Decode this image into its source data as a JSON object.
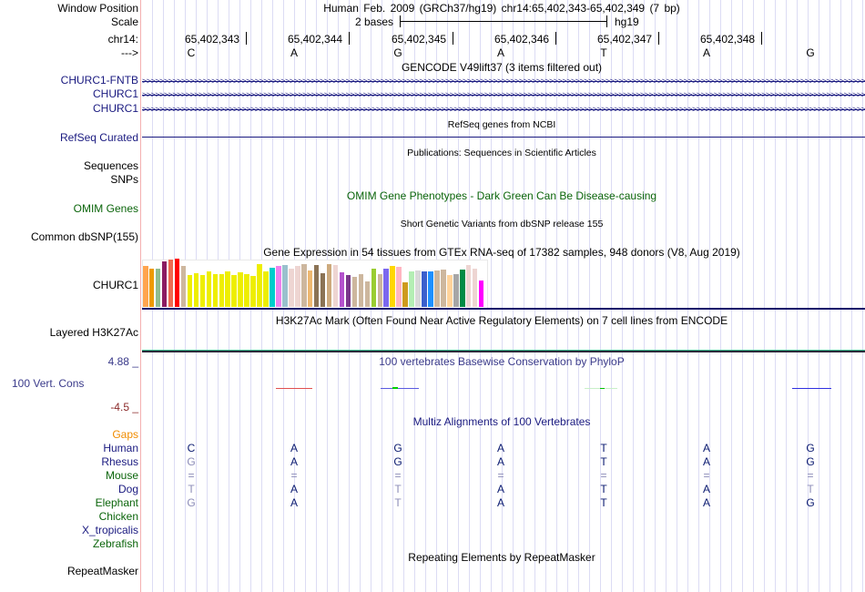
{
  "header": {
    "window_position_label": "Window Position",
    "assembly_position": "Human Feb. 2009 (GRCh37/hg19)   chr14:65,402,343-65,402,349 (7 bp)",
    "scale_label": "Scale",
    "scale_value": "2 bases",
    "scale_db": "hg19",
    "chrom_label": "chr14:",
    "strand_label": "--->",
    "coordinates": [
      "65,402,343",
      "65,402,344",
      "65,402,345",
      "65,402,346",
      "65,402,347",
      "65,402,348"
    ],
    "bases": [
      "C",
      "A",
      "G",
      "A",
      "T",
      "A",
      "G"
    ]
  },
  "tracks": {
    "gencode": {
      "title": "GENCODE V49lift37 (3 items filtered out)",
      "items": [
        "CHURC1-FNTB",
        "CHURC1",
        "CHURC1"
      ]
    },
    "refseq": {
      "title": "RefSeq genes from NCBI",
      "label": "RefSeq Curated"
    },
    "publications": {
      "title": "Publications: Sequences in Scientific Articles",
      "labels": [
        "Sequences",
        "SNPs"
      ]
    },
    "omim": {
      "title": "OMIM Gene Phenotypes - Dark Green Can Be Disease-causing",
      "label": "OMIM Genes"
    },
    "dbsnp": {
      "title": "Short Genetic Variants from dbSNP release 155",
      "label": "Common dbSNP(155)"
    },
    "gtex": {
      "title": "Gene Expression in 54 tissues from GTEx RNA-seq of 17382 samples, 948 donors (V8, Aug 2019)",
      "label": "CHURC1",
      "expression": [
        45,
        42,
        42,
        50,
        52,
        53,
        45,
        35,
        37,
        35,
        39,
        36,
        36,
        39,
        35,
        38,
        36,
        34,
        47,
        39,
        43,
        45,
        46,
        42,
        45,
        47,
        40,
        46,
        37,
        47,
        46,
        38,
        35,
        33,
        36,
        28,
        42,
        36,
        42,
        45,
        44,
        27,
        39,
        40,
        39,
        39,
        40,
        41,
        35,
        36,
        41,
        46,
        42,
        29
      ],
      "colors": [
        "#FFA54F",
        "#EE9A00",
        "#8FBC8F",
        "#8B1C62",
        "#EE6A50",
        "#FF0000",
        "#CDB79E",
        "#EEEE00",
        "#EEEE00",
        "#EEEE00",
        "#EEEE00",
        "#EEEE00",
        "#EEEE00",
        "#EEEE00",
        "#EEEE00",
        "#EEEE00",
        "#EEEE00",
        "#EEEE00",
        "#EEEE00",
        "#EEEE00",
        "#00CDCD",
        "#EE82EE",
        "#9AC0CD",
        "#EED5D2",
        "#EED5D2",
        "#CDB79E",
        "#EEB870",
        "#8B7355",
        "#8B7355",
        "#CDAA7D",
        "#EED5D2",
        "#B452CD",
        "#7A378B",
        "#CDB79E",
        "#CDB79E",
        "#CDB79E",
        "#9ACD32",
        "#CDB79E",
        "#7B68EE",
        "#FFD700",
        "#FFB6C1",
        "#CD9B1D",
        "#B4EEB4",
        "#D9D9D9",
        "#3A5FCD",
        "#1E90FF",
        "#CDB79E",
        "#CDB79E",
        "#FFD39B",
        "#A6A6A6",
        "#008B45",
        "#EED5D2",
        "#EED5D2",
        "#FF00FF"
      ]
    },
    "h3k27ac": {
      "title": "H3K27Ac Mark (Often Found Near Active Regulatory Elements) on 7 cell lines from ENCODE",
      "label": "Layered H3K27Ac"
    },
    "phylop": {
      "title": "100 vertebrates Basewise Conservation by PhyloP",
      "label": "100 Vert. Cons",
      "max": "4.88 _",
      "min": "-4.5 _"
    },
    "multiz": {
      "title": "Multiz Alignments of 100 Vertebrates",
      "gaps_label": "Gaps",
      "species": [
        {
          "name": "Human",
          "bases": [
            "C",
            "A",
            "G",
            "A",
            "T",
            "A",
            "G"
          ]
        },
        {
          "name": "Rhesus",
          "bases": [
            "G",
            "A",
            "G",
            "A",
            "T",
            "A",
            "G"
          ]
        },
        {
          "name": "Mouse",
          "bases": [
            "=",
            "=",
            "=",
            "=",
            "=",
            "=",
            "="
          ]
        },
        {
          "name": "Dog",
          "bases": [
            "T",
            "A",
            "T",
            "A",
            "T",
            "A",
            "T"
          ]
        },
        {
          "name": "Elephant",
          "bases": [
            "G",
            "A",
            "T",
            "A",
            "T",
            "A",
            "G"
          ]
        },
        {
          "name": "Chicken",
          "bases": []
        },
        {
          "name": "X_tropicalis",
          "bases": []
        },
        {
          "name": "Zebrafish",
          "bases": []
        }
      ]
    },
    "repeatmasker": {
      "title": "Repeating Elements by RepeatMasker",
      "label": "RepeatMasker"
    }
  },
  "colors": {
    "navy": "#1a1a80",
    "green": "#0b650b",
    "gaps": "#f08c00",
    "phylop_min": "#8b2a2a"
  }
}
